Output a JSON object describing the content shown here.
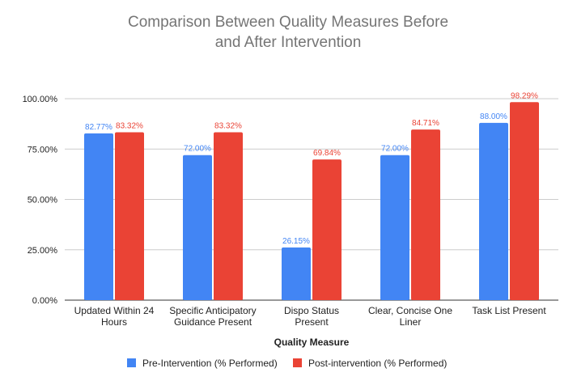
{
  "chart_data": {
    "type": "bar",
    "title_lines": [
      "Comparison Between Quality Measures Before",
      "and After Intervention"
    ],
    "xlabel": "Quality Measure",
    "ylabel": "",
    "ylim": [
      0,
      100
    ],
    "yticks": [
      0,
      25,
      50,
      75,
      100
    ],
    "ytick_labels": [
      "0.00%",
      "25.00%",
      "50.00%",
      "75.00%",
      "100.00%"
    ],
    "categories": [
      [
        "Updated Within 24",
        "Hours"
      ],
      [
        "Specific Anticipatory",
        "Guidance Present"
      ],
      [
        "Dispo Status",
        "Present"
      ],
      [
        "Clear, Concise One",
        "Liner"
      ],
      [
        "Task List Present"
      ]
    ],
    "series": [
      {
        "name": "Pre-Intervention (% Performed)",
        "color": "#4285f4",
        "values": [
          82.77,
          72.0,
          26.15,
          72.0,
          88.0
        ],
        "labels": [
          "82.77%",
          "72.00%",
          "26.15%",
          "72.00%",
          "88.00%"
        ]
      },
      {
        "name": "Post-intervention (% Performed)",
        "color": "#ea4335",
        "values": [
          83.32,
          83.32,
          69.84,
          84.71,
          98.29
        ],
        "labels": [
          "83.32%",
          "83.32%",
          "69.84%",
          "84.71%",
          "98.29%"
        ]
      }
    ],
    "grid": true,
    "legend_position": "bottom"
  }
}
